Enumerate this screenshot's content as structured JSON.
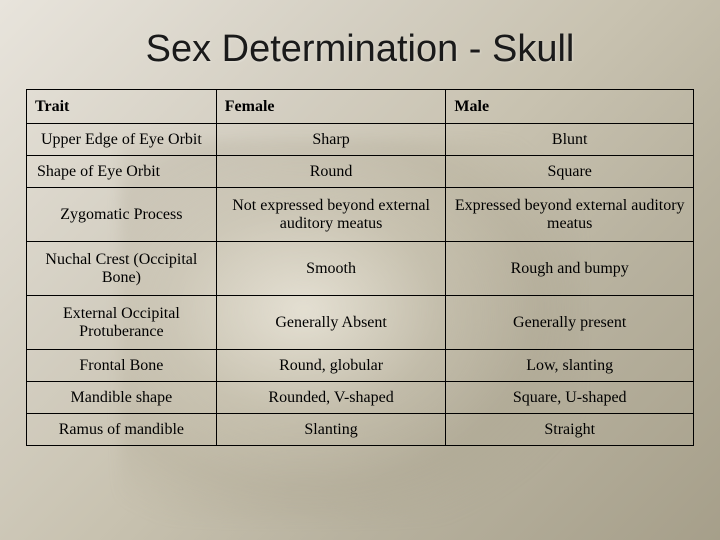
{
  "title": "Sex Determination - Skull",
  "table": {
    "columns": [
      "Trait",
      "Female",
      "Male"
    ],
    "rows": [
      {
        "trait": "Upper Edge of Eye Orbit",
        "female": "Sharp",
        "male": "Blunt",
        "trait_align": "center",
        "height": "sm"
      },
      {
        "trait": "Shape of Eye Orbit",
        "female": "Round",
        "male": "Square",
        "trait_align": "left",
        "height": "sm"
      },
      {
        "trait": "Zygomatic Process",
        "female": "Not expressed beyond external auditory meatus",
        "male": "Expressed beyond external auditory meatus",
        "trait_align": "center",
        "height": "md"
      },
      {
        "trait": "Nuchal Crest (Occipital Bone)",
        "female": "Smooth",
        "male": "Rough and bumpy",
        "trait_align": "center",
        "height": "lg"
      },
      {
        "trait": "External Occipital Protuberance",
        "female": "Generally Absent",
        "male": "Generally present",
        "trait_align": "center",
        "height": "lg"
      },
      {
        "trait": "Frontal Bone",
        "female": "Round, globular",
        "male": "Low, slanting",
        "trait_align": "center",
        "height": "sm"
      },
      {
        "trait": "Mandible shape",
        "female": "Rounded, V-shaped",
        "male": "Square, U-shaped",
        "trait_align": "center",
        "height": "sm"
      },
      {
        "trait": "Ramus of mandible",
        "female": "Slanting",
        "male": "Straight",
        "trait_align": "center",
        "height": "sm"
      }
    ]
  },
  "colors": {
    "text": "#000000",
    "border": "#000000",
    "title": "#1a1a1a",
    "bg_gradient_from": "#e8e4dc",
    "bg_gradient_to": "#a69f8a"
  },
  "fonts": {
    "title_family": "Arial",
    "title_size_pt": 28,
    "body_family": "Times New Roman",
    "body_size_pt": 12
  }
}
